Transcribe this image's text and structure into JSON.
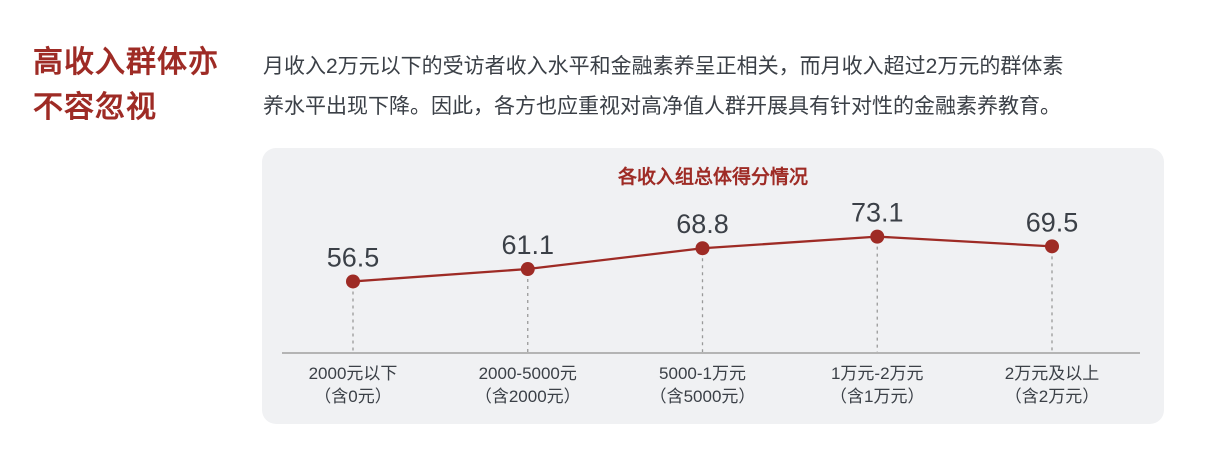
{
  "heading": {
    "lines": [
      "高收入群体亦",
      "不容忽视"
    ],
    "color": "#9e2b25"
  },
  "paragraph": {
    "lines": [
      "月收入2万元以下的受访者收入水平和金融素养呈正相关，而月收入超过2万元的群体素",
      "养水平出现下降。因此，各方也应重视对高净值人群开展具有针对性的金融素养教育。"
    ],
    "color": "#3b4047"
  },
  "chart_data": {
    "type": "line",
    "title": "各收入组总体得分情况",
    "categories": [
      {
        "label": "2000元以下",
        "sublabel": "（含0元）"
      },
      {
        "label": "2000-5000元",
        "sublabel": "（含2000元）"
      },
      {
        "label": "5000-1万元",
        "sublabel": "（含5000元）"
      },
      {
        "label": "1万元-2万元",
        "sublabel": "（含1万元）"
      },
      {
        "label": "2万元及以上",
        "sublabel": "（含2万元）"
      }
    ],
    "values": [
      56.5,
      61.1,
      68.8,
      73.1,
      69.5
    ],
    "ylim": [
      30,
      80
    ],
    "xlabel": "",
    "ylabel": "",
    "grid": false,
    "legend": "none",
    "value_labels": true,
    "colors": {
      "series": "#9e2b25",
      "value_label": "#3b4047",
      "category_label": "#3b4047",
      "axis": "#a0a0a0",
      "dashed_guide": "#999999",
      "panel_background": "#f0f1f3",
      "title": "#9e2b25"
    }
  }
}
